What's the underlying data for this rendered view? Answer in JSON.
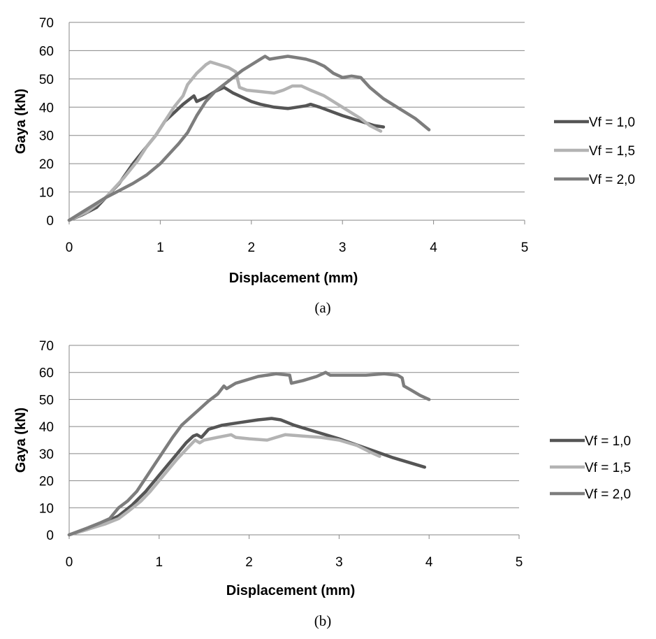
{
  "chart_data": [
    {
      "type": "line",
      "caption": "(a)",
      "xlabel": "Displacement (mm)",
      "ylabel": "Gaya (kN)",
      "xlim": [
        0,
        5
      ],
      "ylim": [
        0,
        70
      ],
      "xticks": [
        0,
        1,
        2,
        3,
        4,
        5
      ],
      "yticks": [
        0,
        10,
        20,
        30,
        40,
        50,
        60,
        70
      ],
      "grid": "horizontal",
      "legend": "right",
      "series": [
        {
          "name": "Vf = 1,0",
          "color": "#555555",
          "points": [
            [
              0,
              0
            ],
            [
              0.15,
              2
            ],
            [
              0.3,
              4.5
            ],
            [
              0.4,
              8
            ],
            [
              0.55,
              13
            ],
            [
              0.7,
              20
            ],
            [
              0.85,
              26
            ],
            [
              0.95,
              30
            ],
            [
              1.05,
              35
            ],
            [
              1.15,
              38
            ],
            [
              1.25,
              41
            ],
            [
              1.37,
              44
            ],
            [
              1.4,
              42
            ],
            [
              1.5,
              43.5
            ],
            [
              1.6,
              45.5
            ],
            [
              1.7,
              47
            ],
            [
              1.8,
              45
            ],
            [
              1.9,
              43.5
            ],
            [
              2.0,
              42
            ],
            [
              2.1,
              41
            ],
            [
              2.25,
              40
            ],
            [
              2.4,
              39.5
            ],
            [
              2.5,
              40
            ],
            [
              2.6,
              40.5
            ],
            [
              2.65,
              41
            ],
            [
              2.75,
              40
            ],
            [
              3.0,
              37
            ],
            [
              3.2,
              35
            ],
            [
              3.35,
              33.5
            ],
            [
              3.45,
              33
            ]
          ]
        },
        {
          "name": "Vf = 1,5",
          "color": "#b3b3b3",
          "points": [
            [
              0,
              0
            ],
            [
              0.2,
              3
            ],
            [
              0.4,
              8
            ],
            [
              0.6,
              15
            ],
            [
              0.75,
              21
            ],
            [
              0.85,
              26
            ],
            [
              0.95,
              30
            ],
            [
              1.05,
              35
            ],
            [
              1.15,
              40
            ],
            [
              1.25,
              44
            ],
            [
              1.3,
              48
            ],
            [
              1.4,
              52
            ],
            [
              1.5,
              55
            ],
            [
              1.55,
              56
            ],
            [
              1.65,
              55
            ],
            [
              1.75,
              54
            ],
            [
              1.83,
              52.5
            ],
            [
              1.87,
              47
            ],
            [
              1.95,
              46
            ],
            [
              2.1,
              45.5
            ],
            [
              2.25,
              45
            ],
            [
              2.35,
              46
            ],
            [
              2.45,
              47.5
            ],
            [
              2.55,
              47.5
            ],
            [
              2.65,
              46
            ],
            [
              2.8,
              44
            ],
            [
              3.0,
              40
            ],
            [
              3.2,
              36
            ],
            [
              3.3,
              33.5
            ],
            [
              3.42,
              31.5
            ]
          ]
        },
        {
          "name": "Vf = 2,0",
          "color": "#7d7d7d",
          "points": [
            [
              0,
              0
            ],
            [
              0.2,
              4
            ],
            [
              0.4,
              8
            ],
            [
              0.55,
              10.5
            ],
            [
              0.7,
              13
            ],
            [
              0.85,
              16
            ],
            [
              1.0,
              20
            ],
            [
              1.1,
              23.5
            ],
            [
              1.2,
              27
            ],
            [
              1.3,
              31
            ],
            [
              1.4,
              37
            ],
            [
              1.5,
              42
            ],
            [
              1.6,
              45.5
            ],
            [
              1.7,
              48
            ],
            [
              1.8,
              50.5
            ],
            [
              1.9,
              53
            ],
            [
              2.0,
              55
            ],
            [
              2.1,
              57
            ],
            [
              2.15,
              58
            ],
            [
              2.2,
              57
            ],
            [
              2.3,
              57.5
            ],
            [
              2.4,
              58
            ],
            [
              2.5,
              57.5
            ],
            [
              2.6,
              57
            ],
            [
              2.7,
              56
            ],
            [
              2.8,
              54.5
            ],
            [
              2.9,
              52
            ],
            [
              3.0,
              50.5
            ],
            [
              3.1,
              51
            ],
            [
              3.2,
              50.5
            ],
            [
              3.3,
              47
            ],
            [
              3.45,
              43
            ],
            [
              3.6,
              40
            ],
            [
              3.8,
              36
            ],
            [
              3.95,
              32
            ]
          ]
        }
      ]
    },
    {
      "type": "line",
      "caption": "(b)",
      "xlabel": "Displacement (mm)",
      "ylabel": "Gaya (kN)",
      "xlim": [
        0,
        5
      ],
      "ylim": [
        0,
        70
      ],
      "xticks": [
        0,
        1,
        2,
        3,
        4,
        5
      ],
      "yticks": [
        0,
        10,
        20,
        30,
        40,
        50,
        60,
        70
      ],
      "grid": "horizontal",
      "legend": "right",
      "series": [
        {
          "name": "Vf = 1,0",
          "color": "#555555",
          "points": [
            [
              0,
              0
            ],
            [
              0.2,
              2
            ],
            [
              0.4,
              4.5
            ],
            [
              0.55,
              7
            ],
            [
              0.7,
              11
            ],
            [
              0.85,
              16
            ],
            [
              1.0,
              22
            ],
            [
              1.1,
              26
            ],
            [
              1.2,
              30
            ],
            [
              1.3,
              34
            ],
            [
              1.38,
              36.5
            ],
            [
              1.42,
              37
            ],
            [
              1.47,
              36
            ],
            [
              1.55,
              39
            ],
            [
              1.7,
              40.5
            ],
            [
              1.9,
              41.5
            ],
            [
              2.1,
              42.5
            ],
            [
              2.25,
              43
            ],
            [
              2.35,
              42.5
            ],
            [
              2.5,
              40.5
            ],
            [
              2.7,
              38.5
            ],
            [
              3.0,
              35.5
            ],
            [
              3.3,
              32
            ],
            [
              3.6,
              28.5
            ],
            [
              3.95,
              25
            ]
          ]
        },
        {
          "name": "Vf = 1,5",
          "color": "#b3b3b3",
          "points": [
            [
              0,
              0
            ],
            [
              0.2,
              2
            ],
            [
              0.4,
              4
            ],
            [
              0.55,
              6
            ],
            [
              0.65,
              8.5
            ],
            [
              0.8,
              12.5
            ],
            [
              0.9,
              16
            ],
            [
              1.0,
              20
            ],
            [
              1.1,
              24
            ],
            [
              1.2,
              28
            ],
            [
              1.3,
              31.5
            ],
            [
              1.4,
              35
            ],
            [
              1.45,
              34
            ],
            [
              1.5,
              35
            ],
            [
              1.65,
              36
            ],
            [
              1.8,
              37
            ],
            [
              1.85,
              36
            ],
            [
              2.0,
              35.5
            ],
            [
              2.2,
              35
            ],
            [
              2.3,
              36
            ],
            [
              2.4,
              37
            ],
            [
              2.6,
              36.5
            ],
            [
              2.8,
              36
            ],
            [
              3.0,
              35
            ],
            [
              3.2,
              33
            ],
            [
              3.35,
              30.5
            ],
            [
              3.45,
              29
            ]
          ]
        },
        {
          "name": "Vf = 2,0",
          "color": "#7d7d7d",
          "points": [
            [
              0,
              0
            ],
            [
              0.2,
              2.5
            ],
            [
              0.35,
              4.5
            ],
            [
              0.45,
              6
            ],
            [
              0.5,
              8
            ],
            [
              0.55,
              10
            ],
            [
              0.65,
              12.5
            ],
            [
              0.75,
              16
            ],
            [
              0.85,
              21
            ],
            [
              0.95,
              26
            ],
            [
              1.05,
              31
            ],
            [
              1.15,
              36
            ],
            [
              1.25,
              40.5
            ],
            [
              1.35,
              43.5
            ],
            [
              1.45,
              46.5
            ],
            [
              1.55,
              49.5
            ],
            [
              1.65,
              52
            ],
            [
              1.72,
              55
            ],
            [
              1.75,
              54
            ],
            [
              1.85,
              56
            ],
            [
              2.0,
              57.5
            ],
            [
              2.1,
              58.5
            ],
            [
              2.2,
              59
            ],
            [
              2.3,
              59.5
            ],
            [
              2.45,
              59
            ],
            [
              2.47,
              56
            ],
            [
              2.6,
              57
            ],
            [
              2.75,
              58.5
            ],
            [
              2.85,
              60
            ],
            [
              2.9,
              59
            ],
            [
              3.1,
              59
            ],
            [
              3.3,
              59
            ],
            [
              3.5,
              59.5
            ],
            [
              3.65,
              59
            ],
            [
              3.7,
              58
            ],
            [
              3.72,
              55
            ],
            [
              3.8,
              53.5
            ],
            [
              3.9,
              51.5
            ],
            [
              4.0,
              50
            ]
          ]
        }
      ]
    }
  ]
}
